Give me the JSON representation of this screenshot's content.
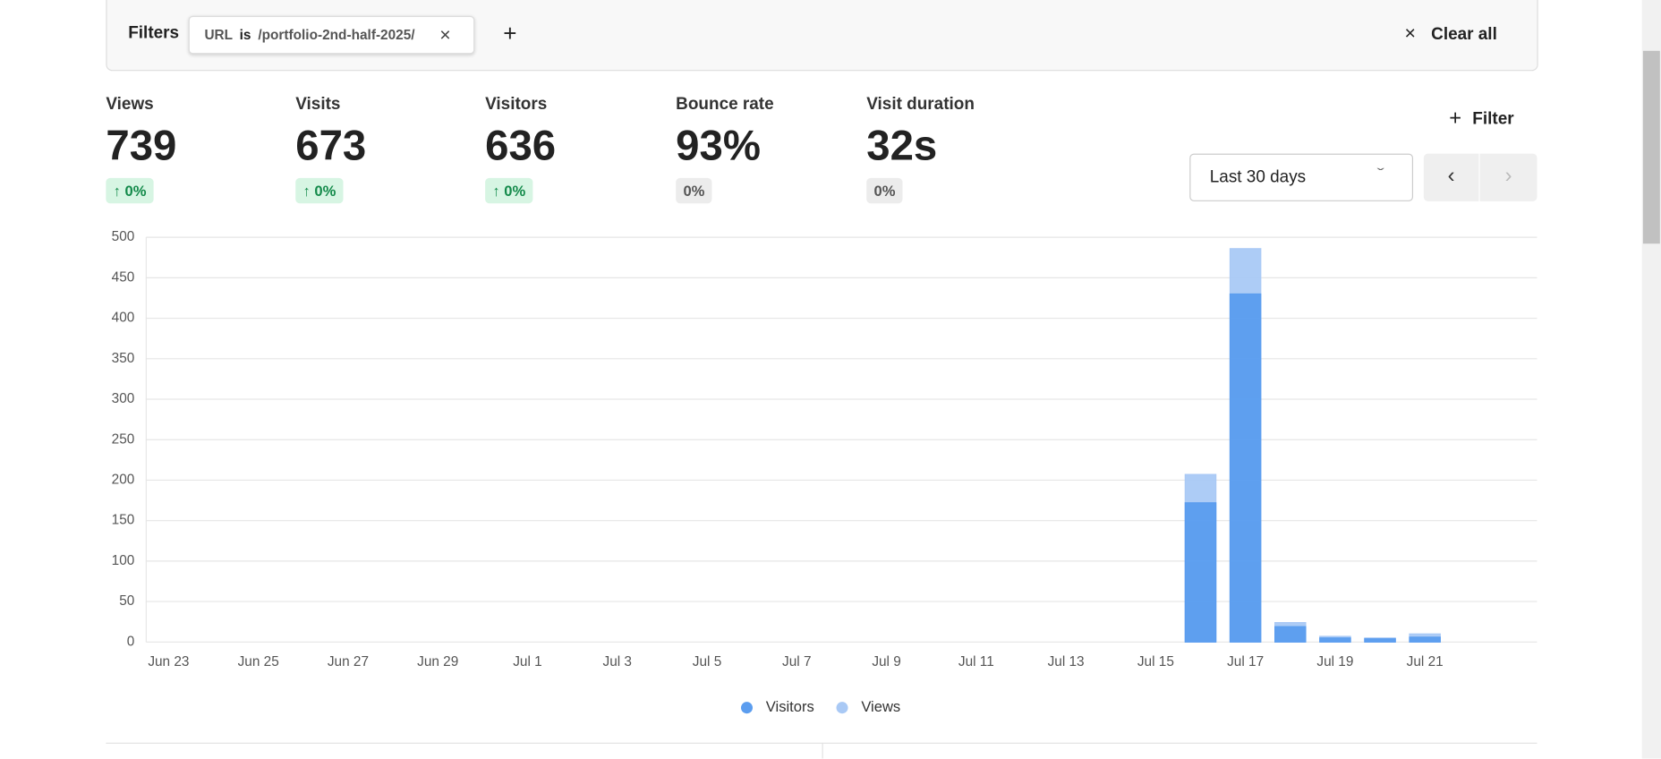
{
  "filters": {
    "label": "Filters",
    "chip": {
      "field": "URL",
      "operator": "is",
      "value": "/portfolio-2nd-half-2025/"
    },
    "clear_all": "Clear all"
  },
  "metrics": [
    {
      "label": "Views",
      "value": "739",
      "change": "0%"
    },
    {
      "label": "Visits",
      "value": "673",
      "change": "0%"
    },
    {
      "label": "Visitors",
      "value": "636",
      "change": "0%"
    },
    {
      "label": "Bounce rate",
      "value": "93%",
      "change": "0%"
    },
    {
      "label": "Visit duration",
      "value": "32s",
      "change": "0%"
    }
  ],
  "filter_button": "Filter",
  "date_range": "Last 30 days",
  "chart_data": {
    "type": "bar",
    "categories": [
      "Jun 23",
      null,
      "Jun 25",
      null,
      "Jun 27",
      null,
      "Jun 29",
      null,
      "Jul 1",
      null,
      "Jul 3",
      null,
      "Jul 5",
      null,
      "Jul 7",
      null,
      "Jul 9",
      null,
      "Jul 11",
      null,
      "Jul 13",
      null,
      "Jul 15",
      null,
      "Jul 17",
      null,
      "Jul 19",
      null,
      "Jul 21",
      null,
      null
    ],
    "series": [
      {
        "name": "Visitors",
        "color": "#5b9def",
        "values": [
          0,
          0,
          0,
          0,
          0,
          0,
          0,
          0,
          0,
          0,
          0,
          0,
          0,
          0,
          0,
          0,
          0,
          0,
          0,
          0,
          0,
          0,
          0,
          172,
          430,
          19,
          5,
          4,
          6,
          0,
          0
        ]
      },
      {
        "name": "Views",
        "color": "#a9c9f5",
        "values": [
          0,
          0,
          0,
          0,
          0,
          0,
          0,
          0,
          0,
          0,
          0,
          0,
          0,
          0,
          0,
          0,
          0,
          0,
          0,
          0,
          0,
          0,
          0,
          207,
          486,
          24,
          7,
          5,
          10,
          0,
          0
        ]
      }
    ],
    "ylim": [
      0,
      500
    ],
    "yticks": [
      0,
      50,
      100,
      150,
      200,
      250,
      300,
      350,
      400,
      450,
      500
    ],
    "grid": true
  }
}
